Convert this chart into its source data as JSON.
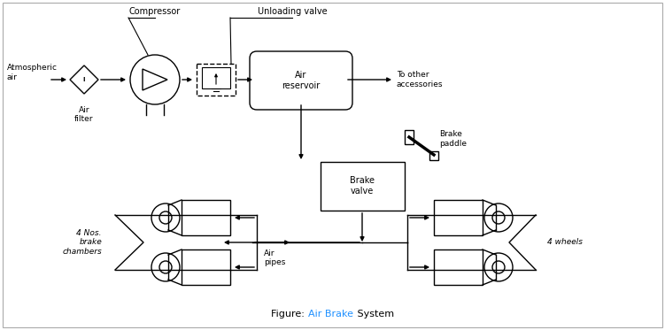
{
  "bg_color": "#ffffff",
  "line_color": "#000000",
  "blue_color": "#1e90ff",
  "figsize": [
    7.51,
    3.73
  ],
  "dpi": 100,
  "labels": {
    "atmospheric_air": "Atmospheric\nair",
    "air_filter": "Air\nfilter",
    "compressor": "Compressor",
    "unloading_valve": "Unloading valve",
    "air_reservoir": "Air\nreservoir",
    "to_other": "To other\naccessories",
    "brake_paddle": "Brake\npaddle",
    "brake_valve": "Brake\nvalve",
    "four_nos": "4 Nos.\nbrake\nchambers",
    "four_wheels": "4 wheels",
    "air_pipes": "Air\npipes"
  }
}
